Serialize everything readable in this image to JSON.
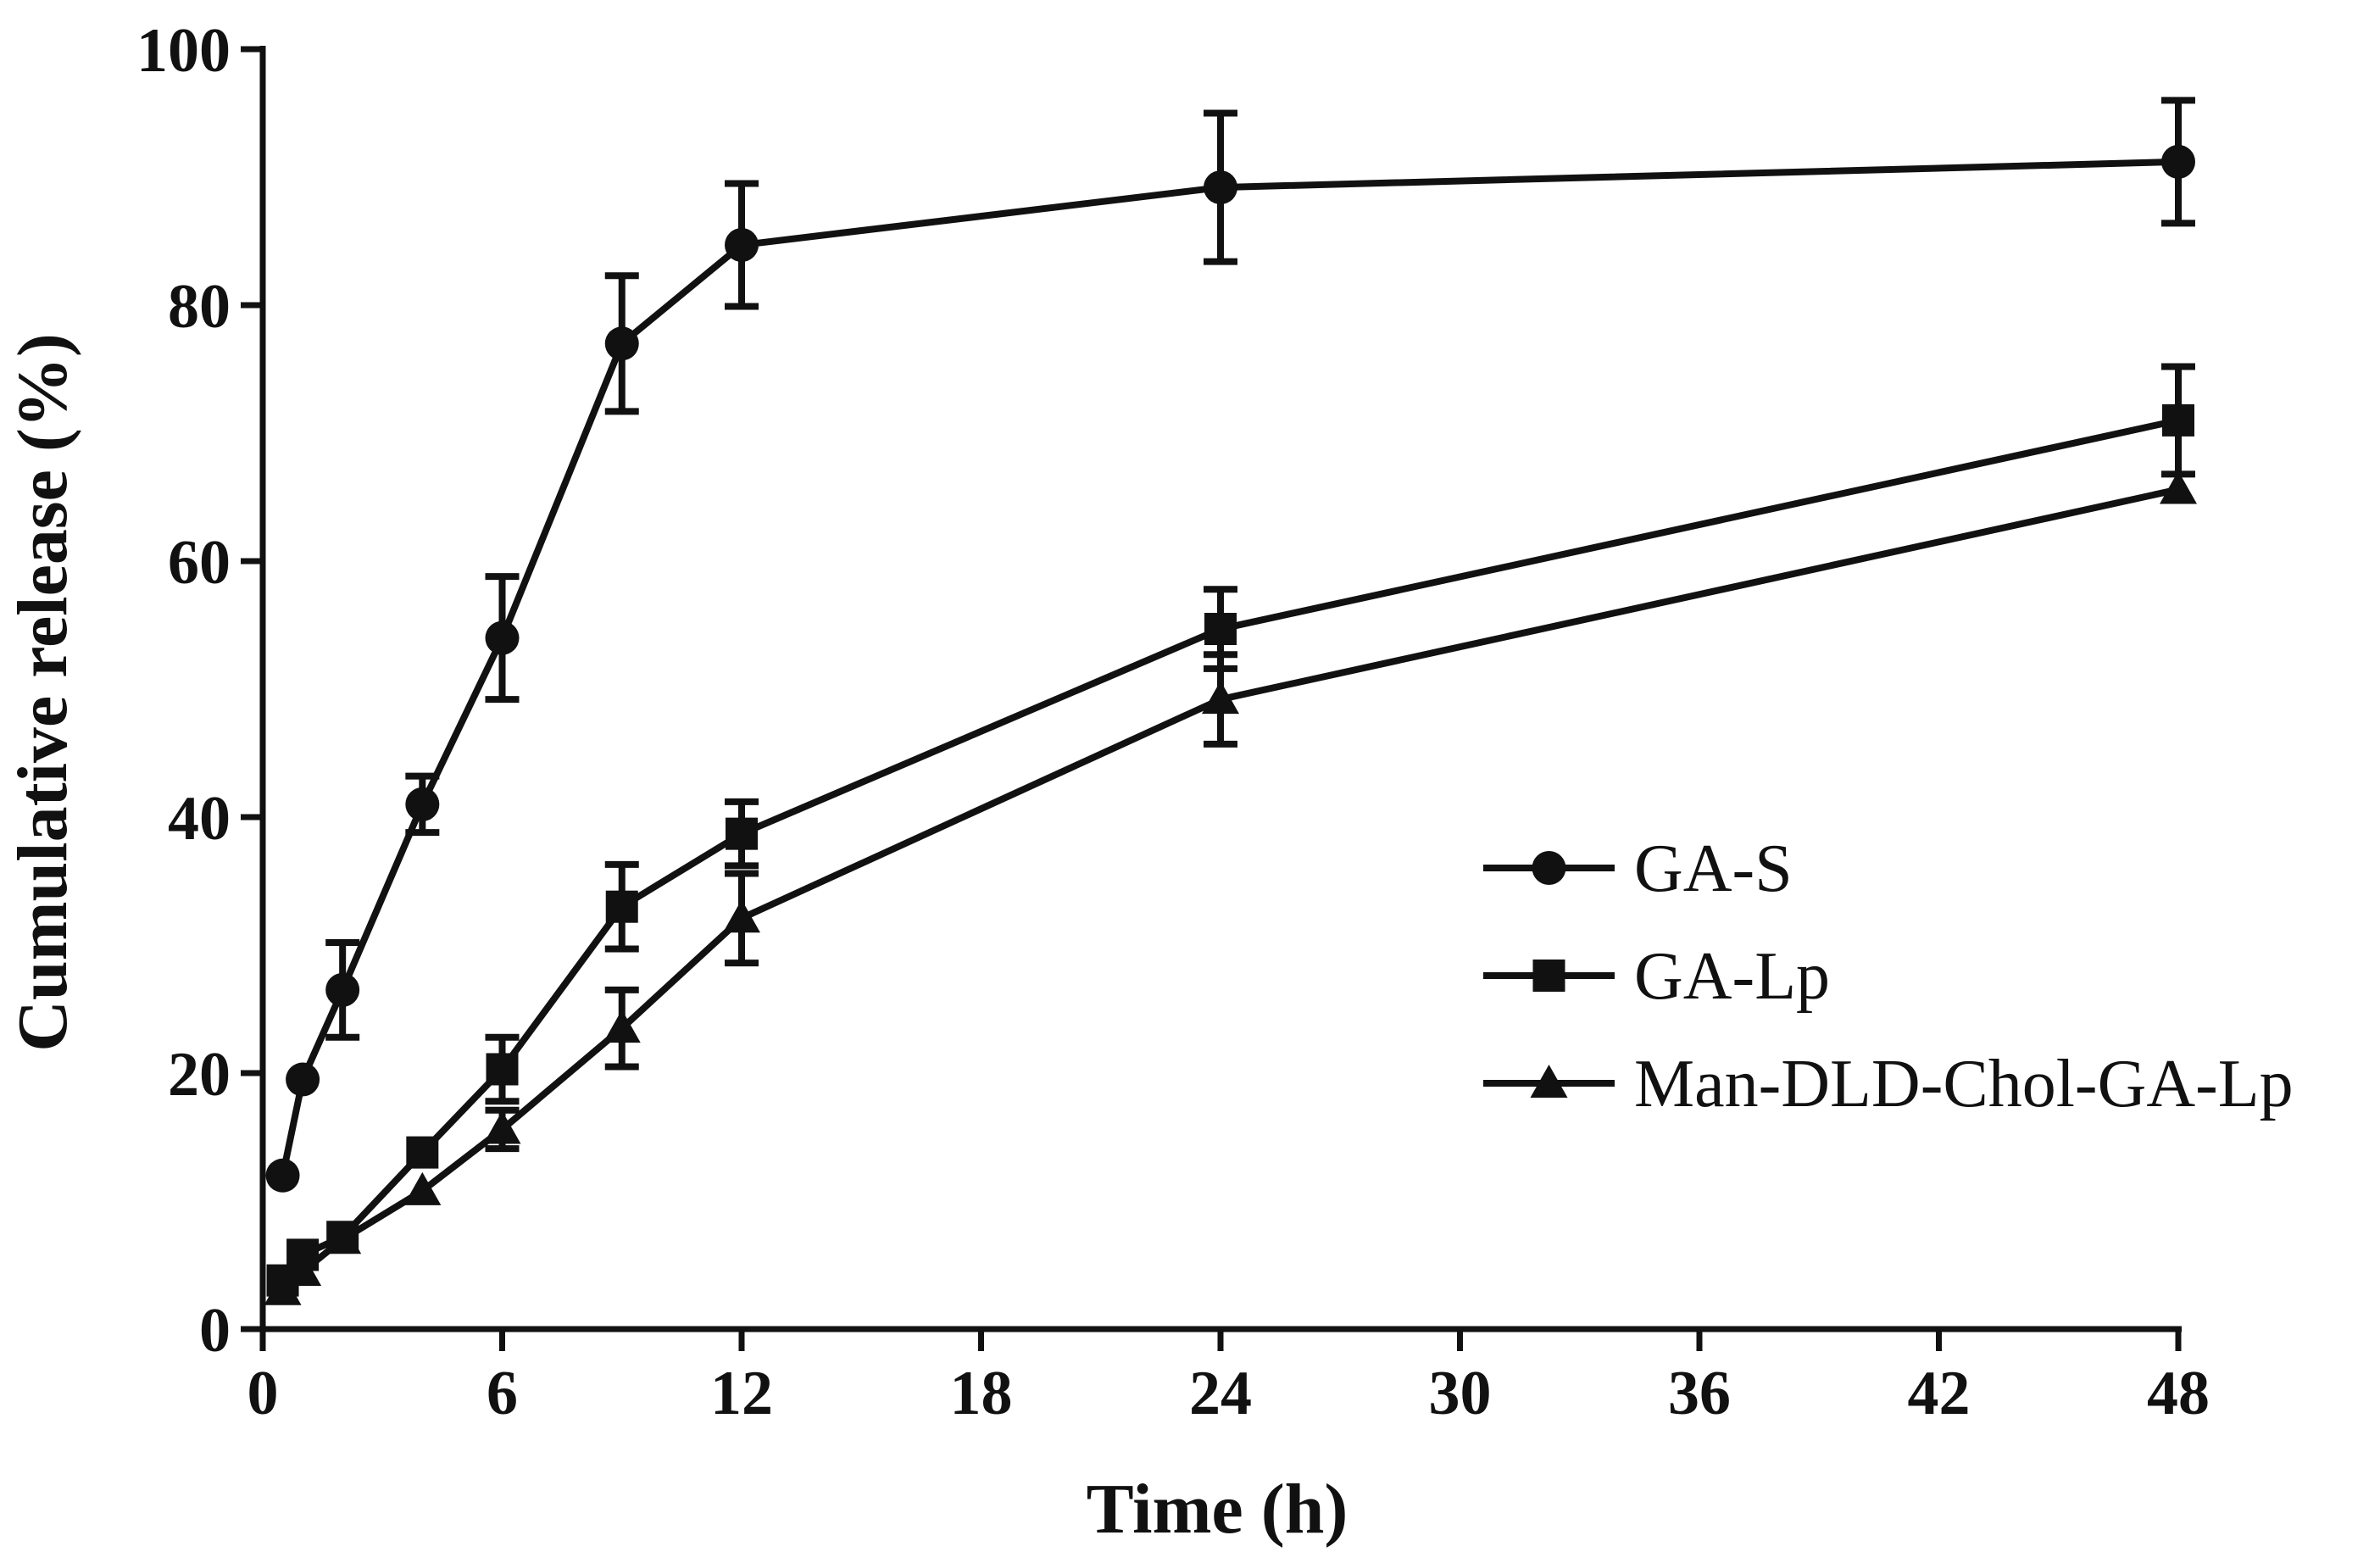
{
  "chart_data": {
    "type": "line",
    "title": "",
    "xlabel": "Time (h)",
    "ylabel": "Cumulative release (%)",
    "xlim": [
      0,
      48
    ],
    "ylim": [
      0,
      100
    ],
    "xticks": [
      0,
      6,
      12,
      18,
      24,
      30,
      36,
      42,
      48
    ],
    "yticks": [
      0,
      20,
      40,
      60,
      80,
      100
    ],
    "grid": false,
    "legend_position": "lower-right",
    "series": [
      {
        "name": "GA-S",
        "marker": "circle",
        "x": [
          0.5,
          1,
          2,
          4,
          6,
          9,
          12,
          24,
          48
        ],
        "y": [
          12,
          19.5,
          26.5,
          41,
          54,
          77,
          84.7,
          89.2,
          91.2
        ],
        "error": [
          0,
          0,
          3.7,
          2.2,
          4.8,
          5.3,
          4.8,
          5.8,
          4.8
        ]
      },
      {
        "name": "GA-Lp",
        "marker": "square",
        "x": [
          0.5,
          1,
          2,
          4,
          6,
          9,
          12,
          24,
          48
        ],
        "y": [
          3.8,
          5.8,
          7.2,
          13.8,
          20.3,
          33,
          38.7,
          54.7,
          71
        ],
        "error": [
          0,
          0,
          0,
          0,
          2.5,
          3.3,
          2.5,
          3.1,
          4.2
        ]
      },
      {
        "name": "Man-DLD-Chol-GA-Lp",
        "marker": "triangle",
        "x": [
          0.5,
          1,
          2,
          4,
          6,
          9,
          12,
          24,
          48
        ],
        "y": [
          3,
          4.5,
          7,
          10.8,
          15.6,
          23.5,
          32.1,
          49.2,
          65.6
        ],
        "error": [
          0,
          0,
          0,
          0,
          1.5,
          3,
          3.5,
          3.5,
          0
        ]
      }
    ]
  }
}
